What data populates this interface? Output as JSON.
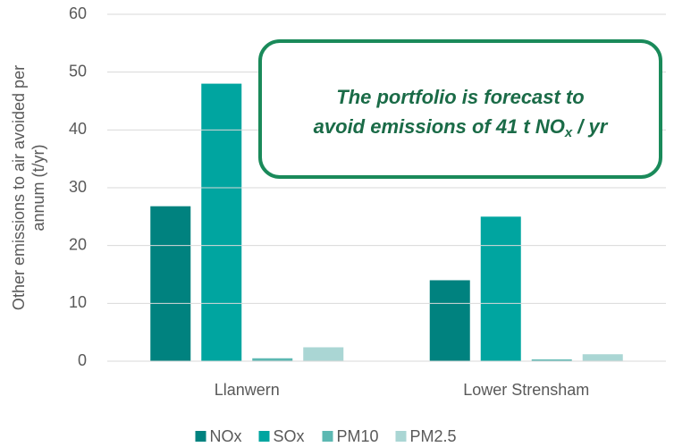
{
  "chart_data": {
    "type": "bar",
    "ylabel": [
      "Other emissions to air avoided per",
      "annum (t/yr)"
    ],
    "categories": [
      "Llanwern",
      "Lower Strensham"
    ],
    "series": [
      {
        "name": "NOx",
        "color": "#00827f",
        "values": [
          26.8,
          14
        ]
      },
      {
        "name": "SOx",
        "color": "#00a5a0",
        "values": [
          48,
          25
        ]
      },
      {
        "name": "PM10",
        "color": "#5cb8b2",
        "values": [
          0.5,
          0.3
        ]
      },
      {
        "name": "PM2.5",
        "color": "#aad6d4",
        "values": [
          2.4,
          1.2
        ]
      }
    ],
    "ylim": [
      0,
      60
    ],
    "yticks": [
      0,
      10,
      20,
      30,
      40,
      50,
      60
    ],
    "grid": true,
    "legend": "bottom",
    "annotation": [
      {
        "text": "The portfolio is forecast to"
      },
      {
        "text": "avoid emissions of 41 t NO",
        "sub": "x",
        "tail": " / yr"
      }
    ]
  }
}
